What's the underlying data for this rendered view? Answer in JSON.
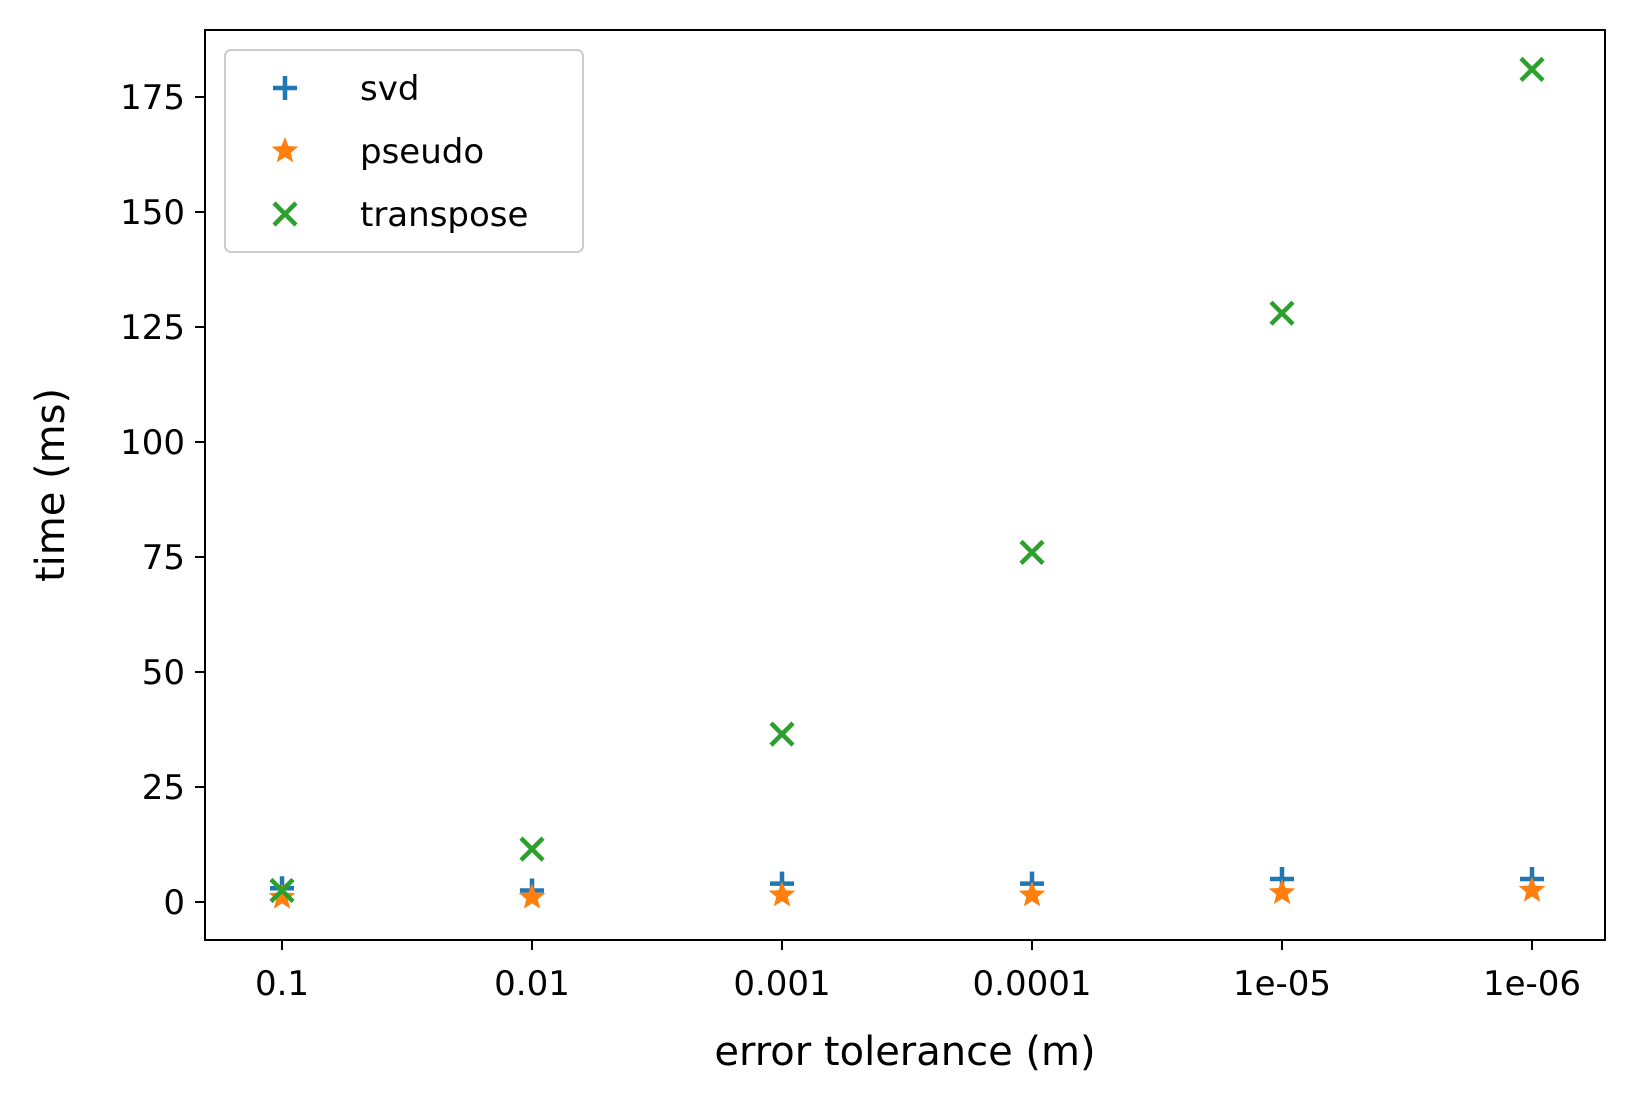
{
  "chart_data": {
    "type": "scatter",
    "title": "",
    "xlabel": "error tolerance (m)",
    "ylabel": "time (ms)",
    "categories": [
      "0.1",
      "0.01",
      "0.001",
      "0.0001",
      "1e-05",
      "1e-06"
    ],
    "ylim": [
      -8,
      190
    ],
    "yticks": [
      0,
      25,
      50,
      75,
      100,
      125,
      150,
      175
    ],
    "grid": false,
    "legend_position": "top-left",
    "series": [
      {
        "name": "svd",
        "marker": "plus-icon",
        "color": "#1f77b4",
        "values": [
          3,
          2.5,
          4,
          4,
          5,
          5
        ]
      },
      {
        "name": "pseudo",
        "marker": "star-icon",
        "color": "#ff7f0e",
        "values": [
          1,
          1,
          1.5,
          1.5,
          2,
          2.5
        ]
      },
      {
        "name": "transpose",
        "marker": "x-icon",
        "color": "#2ca02c",
        "values": [
          2.5,
          11.5,
          36.5,
          76,
          128,
          181
        ]
      }
    ]
  }
}
